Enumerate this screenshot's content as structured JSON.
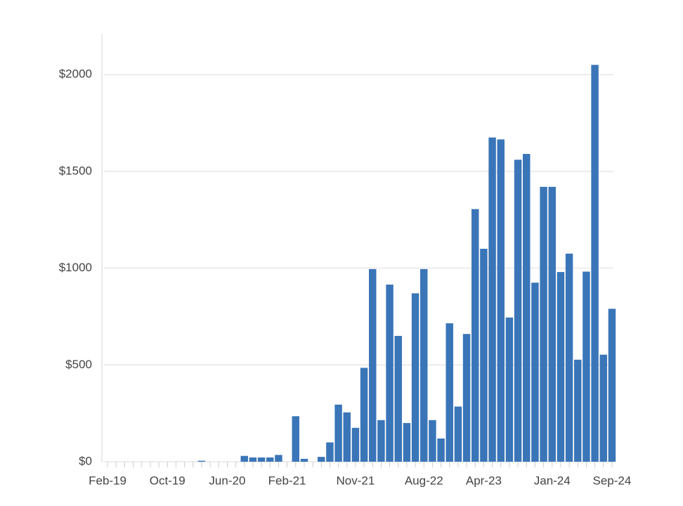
{
  "chart_data": {
    "type": "bar",
    "categories": [
      "Feb-19",
      null,
      null,
      null,
      null,
      null,
      null,
      "Oct-19",
      null,
      null,
      null,
      null,
      null,
      null,
      "Jun-20",
      null,
      null,
      null,
      null,
      null,
      null,
      "Feb-21",
      null,
      null,
      null,
      null,
      null,
      null,
      null,
      "Nov-21",
      null,
      null,
      null,
      null,
      null,
      null,
      null,
      "Aug-22",
      null,
      null,
      null,
      null,
      null,
      null,
      "Apr-23",
      null,
      null,
      null,
      null,
      null,
      null,
      null,
      "Jan-24",
      null,
      null,
      null,
      null,
      null,
      null,
      "Sep-24"
    ],
    "values": [
      0,
      0,
      0,
      0,
      0,
      0,
      0,
      0,
      0,
      0,
      0,
      5,
      0,
      0,
      0,
      0,
      30,
      22,
      22,
      22,
      35,
      0,
      235,
      15,
      0,
      25,
      100,
      295,
      255,
      175,
      485,
      995,
      215,
      915,
      650,
      200,
      870,
      995,
      215,
      120,
      715,
      285,
      660,
      1305,
      1100,
      1675,
      1665,
      745,
      1560,
      1590,
      925,
      1420,
      1420,
      980,
      1075,
      527,
      982,
      2050,
      553,
      790
    ],
    "color": "#3a75b8",
    "ylim": [
      0,
      2200
    ],
    "yticks": [
      {
        "value": 0,
        "label": "$0"
      },
      {
        "value": 500,
        "label": "$500"
      },
      {
        "value": 1000,
        "label": "$1000"
      },
      {
        "value": 1500,
        "label": "$1500"
      },
      {
        "value": 2000,
        "label": "$2000"
      }
    ],
    "grid": true
  }
}
